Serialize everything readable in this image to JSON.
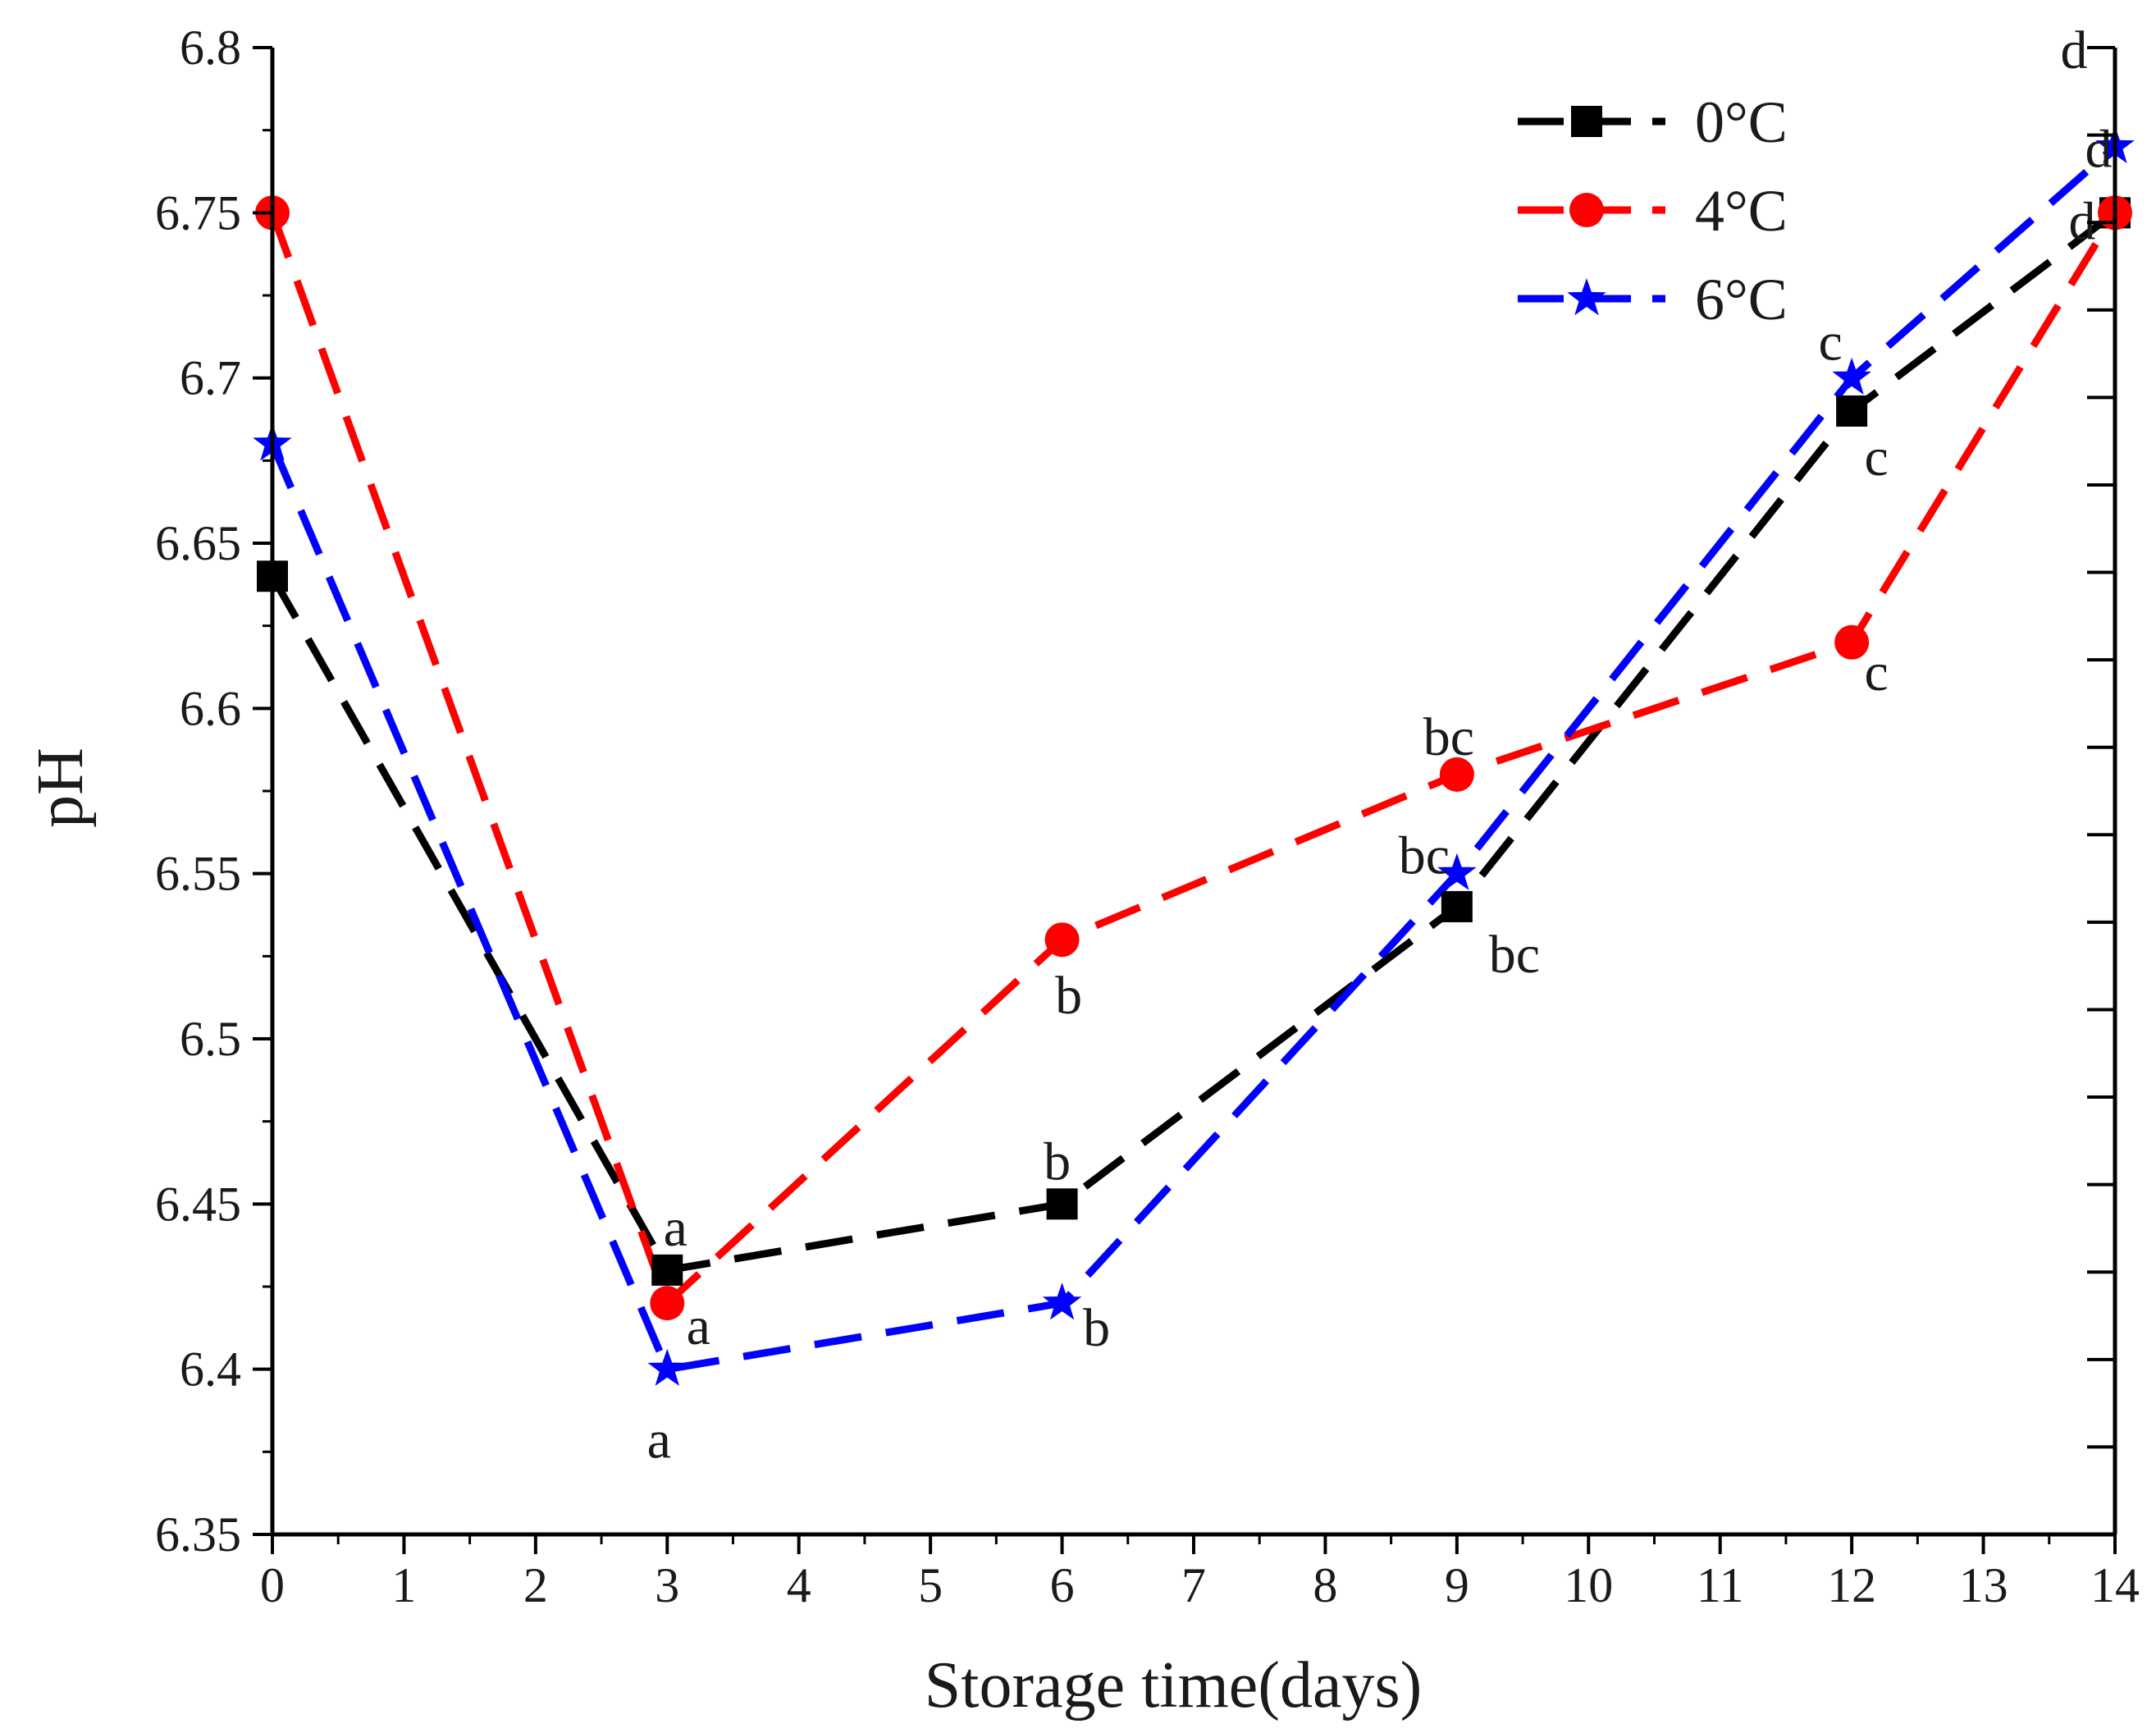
{
  "chart_data": {
    "type": "line",
    "title": "",
    "xlabel": "Storage time(days)",
    "ylabel": "pH",
    "xlim": [
      0,
      14
    ],
    "ylim": [
      6.35,
      6.8
    ],
    "xticks": [
      0,
      1,
      2,
      3,
      4,
      5,
      6,
      7,
      8,
      9,
      10,
      11,
      12,
      13,
      14
    ],
    "yticks": [
      6.35,
      6.4,
      6.45,
      6.5,
      6.55,
      6.6,
      6.65,
      6.7,
      6.75,
      6.8
    ],
    "ytick_labels": [
      "6.35",
      "6.4",
      "6.45",
      "6.5",
      "6.55",
      "6.6",
      "6.65",
      "6.7",
      "6.75",
      "6.8"
    ],
    "x": [
      0,
      3,
      6,
      9,
      12,
      14
    ],
    "grid": false,
    "legend_position": "top-right",
    "series": [
      {
        "name": "0°C",
        "color": "#000000",
        "marker": "square",
        "values": [
          6.64,
          6.43,
          6.45,
          6.54,
          6.69,
          6.75
        ],
        "labels": [
          "",
          "a",
          "b",
          "bc",
          "c",
          "d"
        ]
      },
      {
        "name": "4°C",
        "color": "#ff0000",
        "marker": "circle",
        "values": [
          6.75,
          6.42,
          6.53,
          6.58,
          6.62,
          6.75
        ],
        "labels": [
          "",
          "a",
          "b",
          "bc",
          "c",
          "d"
        ]
      },
      {
        "name": "6°C",
        "color": "#0000ff",
        "marker": "star",
        "values": [
          6.68,
          6.4,
          6.42,
          6.55,
          6.7,
          6.77
        ],
        "labels": [
          "",
          "a",
          "b",
          "bc",
          "c",
          "d"
        ]
      }
    ]
  }
}
